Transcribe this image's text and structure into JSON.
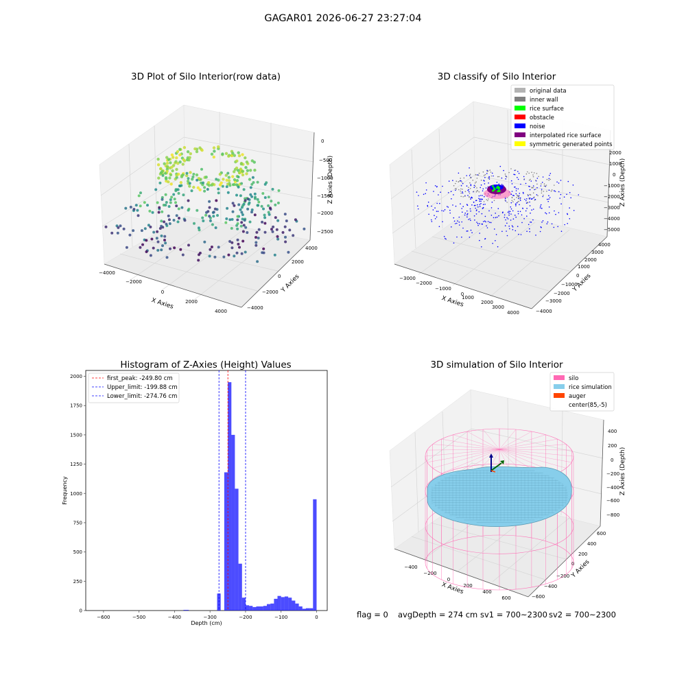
{
  "suptitle": "GAGAR01 2026-06-27 23:27:04",
  "chart_data": [
    {
      "type": "scatter",
      "title": "3D Plot of Silo Interior(row data)",
      "xlabel": "X Axies",
      "ylabel": "Y Axies",
      "zlabel": "Z Axies (Depth)",
      "xticks": [
        "−4000",
        "−2000",
        "0",
        "2000",
        "4000"
      ],
      "yticks": [
        "−4000",
        "−2000",
        "0",
        "2000",
        "4000"
      ],
      "zticks": [
        "0",
        "−500",
        "−1000",
        "−1500",
        "−2000",
        "−2500"
      ],
      "colormap": [
        "#440154",
        "#3b528b",
        "#21908d",
        "#5dc962",
        "#fde725"
      ]
    },
    {
      "type": "scatter",
      "title": "3D classify of Silo Interior",
      "xlabel": "X Axies",
      "ylabel": "Y Axies",
      "zlabel": "Z Axies (Depth)",
      "xticks": [
        "−3000",
        "−2000",
        "−1000",
        "0",
        "1000",
        "2000",
        "3000",
        "4000"
      ],
      "yticks": [
        "−4000",
        "−3000",
        "−2000",
        "−1000",
        "0",
        "1000",
        "2000",
        "3000",
        "4000"
      ],
      "zticks": [
        "2000",
        "1000",
        "0",
        "−1000",
        "−2000",
        "−3000",
        "−4000",
        "−5000"
      ],
      "legend_position": "top-right",
      "legend": [
        {
          "label": "original data",
          "color": "#b3b3b3"
        },
        {
          "label": "inner wall",
          "color": "#808080"
        },
        {
          "label": "rice surface",
          "color": "#00ff00"
        },
        {
          "label": "obstacle",
          "color": "#ff0000"
        },
        {
          "label": "noise",
          "color": "#0000ff"
        },
        {
          "label": "interpolated rice surface",
          "color": "#800080"
        },
        {
          "label": "symmetric generated points",
          "color": "#ffff00"
        }
      ]
    },
    {
      "type": "bar",
      "title": "Histogram of Z-Axies (Height) Values",
      "xlabel": "Depth (cm)",
      "ylabel": "Frequency",
      "xlim": [
        -650,
        30
      ],
      "ylim": [
        0,
        2050
      ],
      "xticks": [
        "−600",
        "−500",
        "−400",
        "−300",
        "−200",
        "−100",
        "0"
      ],
      "yticks": [
        "0",
        "250",
        "500",
        "750",
        "1000",
        "1250",
        "1500",
        "1750",
        "2000"
      ],
      "bar_color": "#0000ff",
      "bins": [
        {
          "x": -375,
          "w": 15,
          "v": 5
        },
        {
          "x": -280,
          "w": 10,
          "v": 145
        },
        {
          "x": -260,
          "w": 10,
          "v": 1180
        },
        {
          "x": -250,
          "w": 10,
          "v": 1950
        },
        {
          "x": -240,
          "w": 10,
          "v": 1500
        },
        {
          "x": -230,
          "w": 10,
          "v": 1040
        },
        {
          "x": -220,
          "w": 10,
          "v": 400
        },
        {
          "x": -210,
          "w": 10,
          "v": 110
        },
        {
          "x": -200,
          "w": 10,
          "v": 45
        },
        {
          "x": -190,
          "w": 10,
          "v": 40
        },
        {
          "x": -180,
          "w": 10,
          "v": 30
        },
        {
          "x": -170,
          "w": 10,
          "v": 35
        },
        {
          "x": -160,
          "w": 10,
          "v": 35
        },
        {
          "x": -150,
          "w": 10,
          "v": 40
        },
        {
          "x": -140,
          "w": 10,
          "v": 55
        },
        {
          "x": -130,
          "w": 10,
          "v": 60
        },
        {
          "x": -120,
          "w": 10,
          "v": 100
        },
        {
          "x": -110,
          "w": 10,
          "v": 125
        },
        {
          "x": -100,
          "w": 10,
          "v": 115
        },
        {
          "x": -90,
          "w": 10,
          "v": 120
        },
        {
          "x": -80,
          "w": 10,
          "v": 110
        },
        {
          "x": -70,
          "w": 10,
          "v": 85
        },
        {
          "x": -60,
          "w": 10,
          "v": 60
        },
        {
          "x": -50,
          "w": 10,
          "v": 35
        },
        {
          "x": -40,
          "w": 10,
          "v": 15
        },
        {
          "x": -30,
          "w": 10,
          "v": 20
        },
        {
          "x": -20,
          "w": 10,
          "v": 20
        },
        {
          "x": -10,
          "w": 10,
          "v": 950
        }
      ],
      "vlines": [
        {
          "x": -249.8,
          "color": "#ff0000",
          "label": "first_peak: -249.80 cm"
        },
        {
          "x": -199.88,
          "color": "#0000ff",
          "label": "Upper_limit: -199.88 cm"
        },
        {
          "x": -274.76,
          "color": "#0000ff",
          "label": "Lower_limit: -274.76 cm"
        }
      ],
      "legend_position": "top-left"
    },
    {
      "type": "area",
      "title": "3D simulation of Silo Interior",
      "xlabel": "X Axies",
      "ylabel": "Y Axies",
      "zlabel": "Z Axies (Depth)",
      "xticks": [
        "−400",
        "−200",
        "0",
        "200",
        "400",
        "600"
      ],
      "yticks": [
        "−600",
        "−400",
        "−200",
        "0",
        "200",
        "400",
        "600"
      ],
      "zticks": [
        "400",
        "200",
        "0",
        "−200",
        "−400",
        "−600",
        "−800"
      ],
      "legend_position": "top-right",
      "legend": [
        {
          "label": "silo",
          "color": "#ff69b4"
        },
        {
          "label": "rice simulation",
          "color": "#87ceeb"
        },
        {
          "label": "auger",
          "color": "#ff4500"
        },
        {
          "label": "center(85,-5)",
          "color": "#ffffff"
        }
      ]
    }
  ],
  "status": {
    "flag": "flag = 0",
    "avg_depth": "avgDepth = 274 cm",
    "sv1": "sv1 = 700~2300",
    "sv2": "sv2 = 700~2300"
  }
}
